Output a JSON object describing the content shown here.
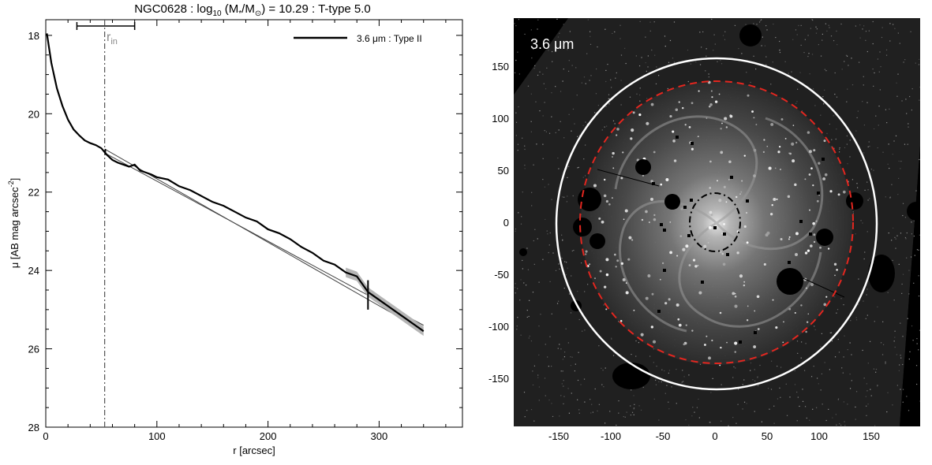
{
  "profile_panel": {
    "title": {
      "name": "NGC0628 : log",
      "sub": "10",
      "mid": " (M",
      "sub2": "*",
      "mid2": "/M",
      "sun": "⊙",
      "rest": ") = 10.29 : T-type 5.0"
    },
    "xlabel": "r [arcsec]",
    "ylabel": {
      "a": "μ [AB mag arcsec",
      "sup": "-2",
      "b": "]"
    },
    "legend": "3.6 μm : Type II",
    "rin_label": {
      "main": "r",
      "sub": "in"
    }
  },
  "image_panel": {
    "band_label": "3.6 μm",
    "x_ticks": [
      "-150",
      "-100",
      "-50",
      "0",
      "50",
      "100",
      "150"
    ],
    "y_ticks": [
      "150",
      "100",
      "50",
      "0",
      "-50",
      "-100",
      "-150"
    ]
  },
  "chart_data": [
    {
      "type": "line",
      "title": "NGC0628 : log10 (M*/M⊙) = 10.29 : T-type 5.0",
      "xlabel": "r [arcsec]",
      "ylabel": "μ [AB mag arcsec-2]",
      "xlim": [
        0,
        375
      ],
      "ylim": [
        28,
        17.6
      ],
      "y_inverted": true,
      "xticks": [
        0,
        100,
        200,
        300
      ],
      "yticks": [
        18,
        20,
        22,
        24,
        26,
        28
      ],
      "legend_position": "top-right",
      "series": [
        {
          "name": "3.6 μm : Type II",
          "x": [
            1,
            5,
            10,
            15,
            20,
            25,
            30,
            35,
            40,
            45,
            50,
            55,
            60,
            65,
            70,
            75,
            80,
            85,
            90,
            95,
            100,
            110,
            120,
            130,
            140,
            150,
            160,
            170,
            180,
            190,
            200,
            210,
            220,
            230,
            240,
            250,
            260,
            270,
            280,
            290,
            300,
            310,
            320,
            330,
            340
          ],
          "y": [
            17.95,
            18.7,
            19.35,
            19.8,
            20.15,
            20.4,
            20.55,
            20.68,
            20.75,
            20.8,
            20.88,
            21.05,
            21.18,
            21.25,
            21.3,
            21.35,
            21.3,
            21.45,
            21.5,
            21.55,
            21.62,
            21.68,
            21.85,
            21.95,
            22.1,
            22.25,
            22.35,
            22.5,
            22.65,
            22.75,
            22.95,
            23.05,
            23.2,
            23.4,
            23.55,
            23.75,
            23.85,
            24.05,
            24.15,
            24.55,
            24.75,
            24.95,
            25.15,
            25.35,
            25.55
          ]
        }
      ],
      "fits": [
        {
          "x": [
            53,
            340
          ],
          "y": [
            21.0,
            25.4
          ]
        },
        {
          "x": [
            53,
            340
          ],
          "y": [
            20.9,
            25.55
          ]
        }
      ],
      "markers": {
        "rin": 53,
        "rin_range": [
          28,
          80
        ],
        "break_radius": 290,
        "break_mu": 24.6
      }
    }
  ]
}
